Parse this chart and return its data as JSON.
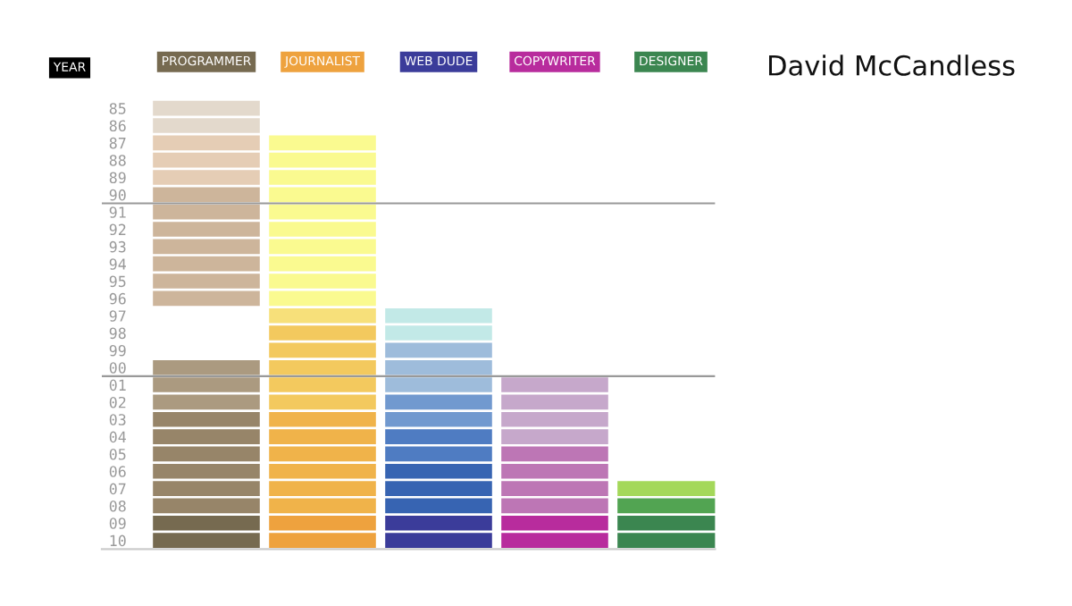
{
  "chart_data": {
    "type": "bar",
    "title": "David McCandless",
    "ylabel": "YEAR",
    "categories": [
      "PROGRAMMER",
      "JOURNALIST",
      "WEB DUDE",
      "COPYWRITER",
      "DESIGNER"
    ],
    "ylim": [
      2010.5,
      1984.1
    ],
    "yticks": [
      {
        "value": 1985,
        "label": "85"
      },
      {
        "value": 1986,
        "label": "86"
      },
      {
        "value": 1987,
        "label": "87"
      },
      {
        "value": 1988,
        "label": "88"
      },
      {
        "value": 1989,
        "label": "89"
      },
      {
        "value": 1990,
        "label": "90"
      },
      {
        "value": 1991,
        "label": "91"
      },
      {
        "value": 1992,
        "label": "92"
      },
      {
        "value": 1993,
        "label": "93"
      },
      {
        "value": 1994,
        "label": "94"
      },
      {
        "value": 1995,
        "label": "95"
      },
      {
        "value": 1996,
        "label": "96"
      },
      {
        "value": 1997,
        "label": "97"
      },
      {
        "value": 1998,
        "label": "98"
      },
      {
        "value": 1999,
        "label": "99"
      },
      {
        "value": 2000,
        "label": "00"
      },
      {
        "value": 2001,
        "label": "01"
      },
      {
        "value": 2002,
        "label": "02"
      },
      {
        "value": 2003,
        "label": "03"
      },
      {
        "value": 2004,
        "label": "04"
      },
      {
        "value": 2005,
        "label": "05"
      },
      {
        "value": 2006,
        "label": "06"
      },
      {
        "value": 2007,
        "label": "07"
      },
      {
        "value": 2008,
        "label": "08"
      },
      {
        "value": 2009,
        "label": "09"
      },
      {
        "value": 2010,
        "label": "10"
      }
    ],
    "ref_lines": [
      {
        "axis": "y",
        "value": 1990.5,
        "color": "#999999"
      },
      {
        "axis": "y",
        "value": 2000.5,
        "color": "#999999"
      }
    ],
    "series": [
      {
        "base": [
          1984.5,
          null,
          null,
          null,
          null
        ],
        "values": [
          1,
          null,
          null,
          null,
          null
        ],
        "colors": [
          "#e3d9cc",
          null,
          null,
          null,
          null
        ]
      },
      {
        "base": [
          1985.5,
          null,
          null,
          null,
          null
        ],
        "values": [
          1,
          null,
          null,
          null,
          null
        ],
        "colors": [
          "#e3d9cc",
          null,
          null,
          null,
          null
        ]
      },
      {
        "base": [
          1986.5,
          1986.5,
          null,
          null,
          null
        ],
        "values": [
          1,
          1,
          null,
          null,
          null
        ],
        "colors": [
          "#e5cdb5",
          "#fafa90",
          null,
          null,
          null
        ]
      },
      {
        "base": [
          1987.5,
          1987.5,
          null,
          null,
          null
        ],
        "values": [
          1,
          1,
          null,
          null,
          null
        ],
        "colors": [
          "#e5cdb5",
          "#fafa90",
          null,
          null,
          null
        ]
      },
      {
        "base": [
          1988.5,
          1988.5,
          null,
          null,
          null
        ],
        "values": [
          1,
          1,
          null,
          null,
          null
        ],
        "colors": [
          "#e5cdb5",
          "#fafa90",
          null,
          null,
          null
        ]
      },
      {
        "base": [
          1989.5,
          1989.5,
          null,
          null,
          null
        ],
        "values": [
          1,
          1,
          null,
          null,
          null
        ],
        "colors": [
          "#cdb59b",
          "#fafa90",
          null,
          null,
          null
        ]
      },
      {
        "base": [
          1990.5,
          1990.5,
          null,
          null,
          null
        ],
        "values": [
          1,
          1,
          null,
          null,
          null
        ],
        "colors": [
          "#cdb59b",
          "#fafa90",
          null,
          null,
          null
        ]
      },
      {
        "base": [
          1991.5,
          1991.5,
          null,
          null,
          null
        ],
        "values": [
          1,
          1,
          null,
          null,
          null
        ],
        "colors": [
          "#cdb59b",
          "#fafa90",
          null,
          null,
          null
        ]
      },
      {
        "base": [
          1992.5,
          1992.5,
          null,
          null,
          null
        ],
        "values": [
          1,
          1,
          null,
          null,
          null
        ],
        "colors": [
          "#cdb59b",
          "#fafa90",
          null,
          null,
          null
        ]
      },
      {
        "base": [
          1993.5,
          1993.5,
          null,
          null,
          null
        ],
        "values": [
          1,
          1,
          null,
          null,
          null
        ],
        "colors": [
          "#cdb59b",
          "#fafa90",
          null,
          null,
          null
        ]
      },
      {
        "base": [
          1994.5,
          1994.5,
          null,
          null,
          null
        ],
        "values": [
          1,
          1,
          null,
          null,
          null
        ],
        "colors": [
          "#cdb59b",
          "#fafa90",
          null,
          null,
          null
        ]
      },
      {
        "base": [
          1995.5,
          1995.5,
          null,
          null,
          null
        ],
        "values": [
          1,
          1,
          null,
          null,
          null
        ],
        "colors": [
          "#cdb59b",
          "#fafa90",
          null,
          null,
          null
        ]
      },
      {
        "base": [
          null,
          1996.5,
          1996.5,
          null,
          null
        ],
        "values": [
          null,
          1,
          1,
          null,
          null
        ],
        "colors": [
          null,
          "#f7e07a",
          "#c2e9e7",
          null,
          null
        ]
      },
      {
        "base": [
          null,
          1997.5,
          1997.5,
          null,
          null
        ],
        "values": [
          null,
          1,
          1,
          null,
          null
        ],
        "colors": [
          null,
          "#f3c95e",
          "#c2e9e7",
          null,
          null
        ]
      },
      {
        "base": [
          null,
          1998.5,
          1998.5,
          null,
          null
        ],
        "values": [
          null,
          1,
          1,
          null,
          null
        ],
        "colors": [
          null,
          "#f3c95e",
          "#9ebcdb",
          null,
          null
        ]
      },
      {
        "base": [
          1999.5,
          1999.5,
          1999.5,
          null,
          null
        ],
        "values": [
          1,
          1,
          1,
          null,
          null
        ],
        "colors": [
          "#ab9a80",
          "#f3c95e",
          "#9ebcdb",
          null,
          null
        ]
      },
      {
        "base": [
          2000.5,
          2000.5,
          2000.5,
          2000.5,
          null
        ],
        "values": [
          1,
          1,
          1,
          1,
          null
        ],
        "colors": [
          "#ab9a80",
          "#f3c95e",
          "#9ebcdb",
          "#c6a8cb",
          null
        ]
      },
      {
        "base": [
          2001.5,
          2001.5,
          2001.5,
          2001.5,
          null
        ],
        "values": [
          1,
          1,
          1,
          1,
          null
        ],
        "colors": [
          "#ab9a80",
          "#f3c95e",
          "#7199cf",
          "#c6a8cb",
          null
        ]
      },
      {
        "base": [
          2002.5,
          2002.5,
          2002.5,
          2002.5,
          null
        ],
        "values": [
          1,
          1,
          1,
          1,
          null
        ],
        "colors": [
          "#978569",
          "#f0b34a",
          "#7199cf",
          "#c6a8cb",
          null
        ]
      },
      {
        "base": [
          2003.5,
          2003.5,
          2003.5,
          2003.5,
          null
        ],
        "values": [
          1,
          1,
          1,
          1,
          null
        ],
        "colors": [
          "#978569",
          "#f0b34a",
          "#4f7cc2",
          "#c6a8cb",
          null
        ]
      },
      {
        "base": [
          2004.5,
          2004.5,
          2004.5,
          2004.5,
          null
        ],
        "values": [
          1,
          1,
          1,
          1,
          null
        ],
        "colors": [
          "#978569",
          "#f0b34a",
          "#4f7cc2",
          "#bd76b5",
          null
        ]
      },
      {
        "base": [
          2005.5,
          2005.5,
          2005.5,
          2005.5,
          null
        ],
        "values": [
          1,
          1,
          1,
          1,
          null
        ],
        "colors": [
          "#978569",
          "#f0b34a",
          "#3764b2",
          "#bd76b5",
          null
        ]
      },
      {
        "base": [
          2006.5,
          2006.5,
          2006.5,
          2006.5,
          2006.5
        ],
        "values": [
          1,
          1,
          1,
          1,
          1
        ],
        "colors": [
          "#978569",
          "#f0b34a",
          "#3764b2",
          "#bd76b5",
          "#a4d85a"
        ]
      },
      {
        "base": [
          2007.5,
          2007.5,
          2007.5,
          2007.5,
          2007.5
        ],
        "values": [
          1,
          1,
          1,
          1,
          1
        ],
        "colors": [
          "#978569",
          "#f0b34a",
          "#3764b2",
          "#bd76b5",
          "#52a452"
        ]
      },
      {
        "base": [
          2008.5,
          2008.5,
          2008.5,
          2008.5,
          2008.5
        ],
        "values": [
          1,
          1,
          1,
          1,
          1
        ],
        "colors": [
          "#766a50",
          "#eea23e",
          "#3b3c9a",
          "#b82c9d",
          "#3b8650"
        ]
      },
      {
        "base": [
          2009.5,
          2009.5,
          2009.5,
          2009.5,
          2009.5
        ],
        "values": [
          1,
          1,
          1,
          1,
          1
        ],
        "colors": [
          "#766a50",
          "#eea23e",
          "#3b3c9a",
          "#b82c9d",
          "#3b8650"
        ]
      }
    ]
  }
}
